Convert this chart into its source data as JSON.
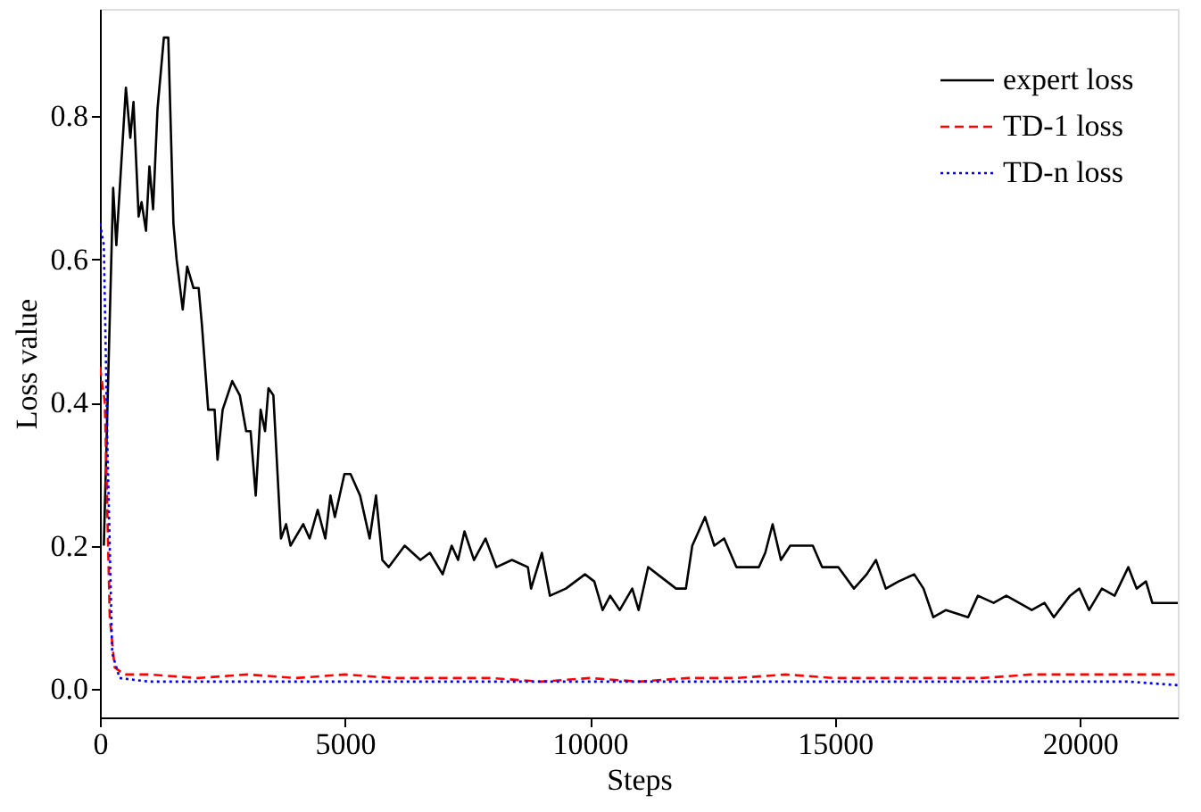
{
  "chart_data": {
    "type": "line",
    "xlabel": "Steps",
    "ylabel": "Loss value",
    "xlim": [
      0,
      22000
    ],
    "ylim": [
      -0.04,
      0.95
    ],
    "xticks": [
      0,
      5000,
      10000,
      15000,
      20000
    ],
    "yticks": [
      {
        "value": 0,
        "label": "0.0"
      },
      0.2,
      0.4,
      0.6,
      0.8
    ],
    "grid": false,
    "legend": "top right",
    "marker": "none",
    "series": [
      {
        "name": "expert loss",
        "color": "#000000",
        "line_style": "solid",
        "x": [
          80,
          270,
          335,
          530,
          620,
          685,
          790,
          850,
          940,
          1010,
          1085,
          1175,
          1305,
          1395,
          1500,
          1565,
          1690,
          1780,
          1910,
          2015,
          2080,
          2210,
          2340,
          2400,
          2505,
          2700,
          2855,
          2985,
          3075,
          3180,
          3280,
          3370,
          3440,
          3540,
          3695,
          3800,
          3890,
          4150,
          4280,
          4445,
          4600,
          4705,
          4795,
          4990,
          5115,
          5310,
          5505,
          5635,
          5765,
          5895,
          6220,
          6540,
          6735,
          6995,
          7180,
          7310,
          7440,
          7635,
          7870,
          8090,
          8410,
          8735,
          8800,
          9020,
          9185,
          9510,
          9900,
          10090,
          10260,
          10415,
          10610,
          10865,
          10995,
          11190,
          11380,
          11570,
          11760,
          11960,
          12090,
          12350,
          12540,
          12740,
          12990,
          13190,
          13450,
          13580,
          13730,
          13900,
          14090,
          14350,
          14550,
          14740,
          15070,
          15390,
          15650,
          15840,
          16040,
          16300,
          16620,
          16810,
          17010,
          17270,
          17720,
          17920,
          18240,
          18500,
          18760,
          19020,
          19280,
          19470,
          19800,
          19990,
          20190,
          20450,
          20710,
          20990,
          21160,
          21350,
          21480,
          21680,
          22000
        ],
        "values": [
          0.2,
          0.7,
          0.62,
          0.84,
          0.77,
          0.82,
          0.66,
          0.68,
          0.64,
          0.73,
          0.67,
          0.81,
          0.91,
          0.91,
          0.65,
          0.6,
          0.53,
          0.59,
          0.56,
          0.56,
          0.51,
          0.39,
          0.39,
          0.32,
          0.39,
          0.43,
          0.41,
          0.36,
          0.36,
          0.27,
          0.39,
          0.36,
          0.42,
          0.41,
          0.21,
          0.23,
          0.2,
          0.23,
          0.21,
          0.25,
          0.21,
          0.27,
          0.24,
          0.3,
          0.3,
          0.27,
          0.21,
          0.27,
          0.18,
          0.17,
          0.2,
          0.18,
          0.19,
          0.16,
          0.2,
          0.18,
          0.22,
          0.18,
          0.21,
          0.17,
          0.18,
          0.17,
          0.14,
          0.19,
          0.13,
          0.14,
          0.16,
          0.15,
          0.11,
          0.13,
          0.11,
          0.14,
          0.11,
          0.17,
          0.16,
          0.15,
          0.14,
          0.14,
          0.2,
          0.24,
          0.2,
          0.21,
          0.17,
          0.17,
          0.17,
          0.19,
          0.23,
          0.18,
          0.2,
          0.2,
          0.2,
          0.17,
          0.17,
          0.14,
          0.16,
          0.18,
          0.14,
          0.15,
          0.16,
          0.14,
          0.1,
          0.11,
          0.1,
          0.13,
          0.12,
          0.13,
          0.12,
          0.11,
          0.12,
          0.1,
          0.13,
          0.14,
          0.11,
          0.14,
          0.13,
          0.17,
          0.14,
          0.15,
          0.12,
          0.12,
          0.12
        ]
      },
      {
        "name": "TD-1 loss",
        "color": "#ff0000",
        "line_style": "dashed",
        "x": [
          0,
          100,
          200,
          300,
          500,
          1000,
          2000,
          3000,
          4000,
          5000,
          6000,
          7000,
          8000,
          9000,
          10000,
          11000,
          12000,
          13000,
          14000,
          15000,
          16000,
          17000,
          18000,
          19000,
          20000,
          21000,
          22000
        ],
        "values": [
          0.45,
          0.4,
          0.1,
          0.03,
          0.02,
          0.02,
          0.015,
          0.02,
          0.015,
          0.02,
          0.015,
          0.015,
          0.015,
          0.01,
          0.015,
          0.01,
          0.015,
          0.015,
          0.02,
          0.015,
          0.015,
          0.015,
          0.015,
          0.02,
          0.02,
          0.02,
          0.02
        ]
      },
      {
        "name": "TD-n loss",
        "color": "#0000ff",
        "line_style": "dotted",
        "x": [
          0,
          80,
          150,
          250,
          400,
          1000,
          2000,
          3000,
          4000,
          5000,
          6000,
          7000,
          8000,
          9000,
          10000,
          11000,
          12000,
          13000,
          14000,
          15000,
          16000,
          17000,
          18000,
          19000,
          20000,
          21000,
          22000
        ],
        "values": [
          0.65,
          0.62,
          0.35,
          0.05,
          0.015,
          0.01,
          0.01,
          0.01,
          0.01,
          0.01,
          0.01,
          0.01,
          0.01,
          0.01,
          0.01,
          0.01,
          0.01,
          0.01,
          0.01,
          0.01,
          0.01,
          0.01,
          0.01,
          0.01,
          0.01,
          0.01,
          0.005
        ]
      }
    ]
  }
}
